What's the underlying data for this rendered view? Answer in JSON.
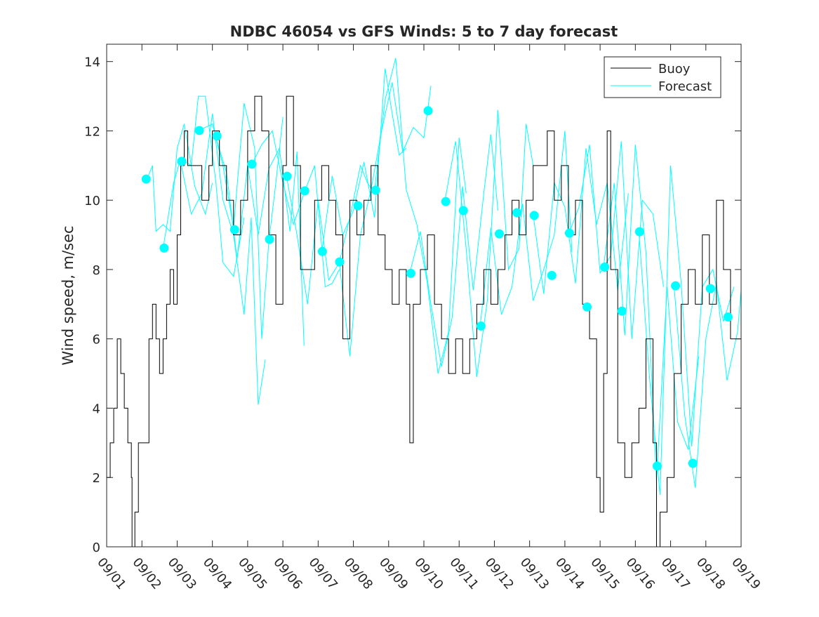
{
  "chart_data": {
    "type": "line",
    "title": "NDBC 46054 vs GFS Winds: 5 to 7 day forecast",
    "xlabel": "",
    "ylabel": "Wind speed, m/sec",
    "xlim": [
      0,
      18
    ],
    "ylim": [
      0,
      14.5
    ],
    "x_units": "days since 09/01",
    "x_tick_labels": [
      "09/01",
      "09/02",
      "09/03",
      "09/04",
      "09/05",
      "09/06",
      "09/07",
      "09/08",
      "09/09",
      "09/10",
      "09/11",
      "09/12",
      "09/13",
      "09/14",
      "09/15",
      "09/16",
      "09/17",
      "09/18",
      "09/19"
    ],
    "y_ticks": [
      0,
      2,
      4,
      6,
      8,
      10,
      12,
      14
    ],
    "legend": {
      "placement": "top-right",
      "entries": [
        "Buoy",
        "Forecast"
      ]
    },
    "colors": {
      "buoy": "#000000",
      "forecast": "#00ffff"
    },
    "series": [
      {
        "name": "Buoy",
        "style": "step",
        "x": [
          0,
          0.1,
          0.2,
          0.3,
          0.4,
          0.5,
          0.6,
          0.7,
          0.72,
          0.8,
          0.9,
          1.1,
          1.2,
          1.3,
          1.4,
          1.5,
          1.6,
          1.7,
          1.8,
          1.9,
          2.0,
          2.1,
          2.2,
          2.3,
          2.5,
          2.7,
          2.9,
          3.0,
          3.2,
          3.4,
          3.6,
          3.8,
          4.0,
          4.2,
          4.4,
          4.6,
          4.8,
          5.0,
          5.1,
          5.3,
          5.5,
          5.7,
          5.9,
          6.1,
          6.3,
          6.5,
          6.7,
          6.9,
          7.1,
          7.3,
          7.5,
          7.7,
          7.9,
          8.1,
          8.3,
          8.5,
          8.6,
          8.7,
          8.9,
          9.1,
          9.3,
          9.5,
          9.7,
          9.9,
          10.1,
          10.3,
          10.5,
          10.7,
          10.9,
          11.1,
          11.3,
          11.5,
          11.7,
          11.9,
          12.1,
          12.3,
          12.5,
          12.7,
          12.9,
          13.1,
          13.3,
          13.5,
          13.7,
          13.9,
          14.0,
          14.1,
          14.2,
          14.3,
          14.5,
          14.7,
          14.9,
          15.1,
          15.3,
          15.5,
          15.6,
          15.7,
          15.9,
          16.1,
          16.3,
          16.5,
          16.7,
          16.9,
          17.1,
          17.3,
          17.5,
          17.7,
          17.9,
          18.0
        ],
        "y": [
          2,
          3,
          4,
          6,
          5,
          4,
          3,
          2,
          0,
          1,
          3,
          3,
          6,
          7,
          6,
          5,
          6,
          7,
          8,
          7,
          9,
          11,
          12,
          11,
          11,
          10,
          11,
          12,
          11,
          10,
          9,
          10,
          12,
          13,
          12,
          9,
          7,
          11,
          13,
          11,
          8,
          8,
          10,
          11,
          10,
          9,
          6,
          10,
          9,
          10,
          11,
          9,
          8,
          7,
          8,
          7,
          3,
          7,
          8,
          9,
          7,
          6,
          5,
          6,
          5,
          6,
          7,
          8,
          7,
          8,
          9,
          10,
          9,
          10,
          11,
          11,
          12,
          10,
          11,
          9,
          10,
          7,
          6,
          2,
          1,
          5,
          12,
          8,
          3,
          2,
          3,
          4,
          6,
          3,
          0,
          1,
          2,
          5,
          7,
          8,
          7,
          9,
          7,
          10,
          8,
          6,
          6,
          6
        ]
      },
      {
        "name": "Forecast",
        "segments": [
          {
            "x": [
              1.1,
              1.3,
              1.4,
              1.6,
              1.8,
              2.0,
              2.2,
              2.5,
              2.8,
              3.0
            ],
            "y": [
              10.5,
              11,
              9.1,
              9.3,
              9.1,
              11.5,
              12.2,
              10.4,
              9.6,
              10.5
            ]
          },
          {
            "x": [
              1.6,
              1.9,
              2.1,
              2.4,
              2.6,
              2.8,
              3.1,
              3.3,
              3.6,
              3.9
            ],
            "y": [
              8.6,
              10.5,
              11.2,
              11.0,
              13.0,
              13.0,
              10.5,
              8.2,
              7.8,
              9.5
            ]
          },
          {
            "x": [
              2.1,
              2.4,
              2.7,
              3.0,
              3.3,
              3.6,
              3.9,
              4.1,
              4.3,
              4.5
            ],
            "y": [
              11.1,
              9.6,
              10.2,
              12.5,
              10.0,
              9.0,
              6.7,
              9.5,
              4.1,
              5.4
            ]
          },
          {
            "x": [
              2.6,
              3.0,
              3.3,
              3.6,
              3.9,
              4.2,
              4.4,
              4.6,
              4.8,
              5.0
            ],
            "y": [
              12.0,
              12.2,
              11.0,
              9.2,
              12.8,
              11.5,
              6.0,
              8.8,
              10.5,
              12.4
            ]
          },
          {
            "x": [
              3.1,
              3.4,
              3.7,
              4.0,
              4.3,
              4.6,
              4.9,
              5.2,
              5.4,
              5.6
            ],
            "y": [
              11.8,
              10.8,
              8.3,
              11.0,
              9.0,
              10.9,
              11.5,
              9.1,
              11.4,
              5.8
            ]
          },
          {
            "x": [
              4.1,
              4.4,
              4.7,
              5.0,
              5.3,
              5.6,
              5.9,
              6.2,
              6.4,
              6.6
            ],
            "y": [
              11.0,
              11.6,
              12.0,
              10.5,
              9.3,
              10.2,
              11.0,
              7.5,
              7.6,
              8.0
            ]
          },
          {
            "x": [
              5.1,
              5.4,
              5.7,
              6.0,
              6.3,
              6.6,
              6.9,
              7.2,
              7.4,
              7.6
            ],
            "y": [
              10.7,
              9.0,
              7.0,
              10.0,
              7.7,
              8.2,
              9.5,
              11.0,
              10.5,
              10.2
            ]
          },
          {
            "x": [
              6.1,
              6.4,
              6.7,
              7.0,
              7.3,
              7.6,
              7.9,
              8.1,
              8.3,
              8.5
            ],
            "y": [
              8.5,
              10.7,
              9.0,
              9.7,
              11.1,
              9.5,
              13.8,
              12.5,
              11.3,
              11.5
            ]
          },
          {
            "x": [
              6.6,
              6.9,
              7.2,
              7.5,
              7.8,
              8.1,
              8.4,
              8.7,
              9.0,
              9.2
            ],
            "y": [
              8.2,
              5.5,
              9.0,
              10.3,
              12.0,
              13.4,
              11.4,
              12.1,
              11.8,
              13.3
            ]
          },
          {
            "x": [
              7.6,
              7.9,
              8.2,
              8.5,
              8.8,
              9.1,
              9.4,
              9.7,
              10.0,
              10.2
            ],
            "y": [
              10.3,
              12.9,
              14.1,
              10.3,
              9.3,
              7.6,
              5.0,
              6.2,
              11.8,
              10.2
            ]
          },
          {
            "x": [
              8.6,
              8.9,
              9.2,
              9.5,
              9.8,
              10.1,
              10.4,
              10.7,
              10.9,
              11.1
            ],
            "y": [
              7.9,
              9.1,
              7.0,
              5.2,
              6.6,
              10.4,
              7.4,
              10.2,
              11.9,
              9.7
            ]
          },
          {
            "x": [
              9.6,
              9.9,
              10.2,
              10.5,
              10.8,
              11.1,
              11.4,
              11.7,
              11.9,
              12.1
            ],
            "y": [
              10.0,
              11.7,
              8.6,
              4.9,
              7.1,
              12.6,
              8.0,
              8.6,
              12.2,
              11.0
            ]
          },
          {
            "x": [
              10.6,
              10.9,
              11.2,
              11.5,
              11.8,
              12.1,
              12.4,
              12.7,
              13.0,
              13.2
            ],
            "y": [
              6.4,
              9.2,
              6.7,
              7.5,
              9.9,
              7.1,
              8.0,
              9.0,
              12.0,
              8.5
            ]
          },
          {
            "x": [
              12.1,
              12.4,
              12.7,
              13.0,
              13.3,
              13.6,
              13.9,
              14.2,
              14.5,
              14.8
            ],
            "y": [
              9.6,
              7.3,
              10.5,
              9.8,
              7.6,
              11.5,
              9.3,
              10.5,
              7.4,
              10.2
            ]
          },
          {
            "x": [
              13.1,
              13.4,
              13.7,
              14.0,
              14.3,
              14.6,
              14.9,
              15.2,
              15.5,
              15.8
            ],
            "y": [
              9.0,
              9.8,
              11.6,
              7.9,
              8.4,
              11.7,
              6.0,
              10.0,
              9.6,
              7.5
            ]
          },
          {
            "x": [
              14.1,
              14.4,
              14.7,
              15.0,
              15.3,
              15.6,
              15.9,
              16.2,
              16.5,
              16.8
            ],
            "y": [
              8.1,
              10.5,
              6.1,
              11.6,
              8.5,
              1.9,
              7.5,
              3.6,
              2.8,
              5.5
            ]
          },
          {
            "x": [
              15.1,
              15.4,
              15.7,
              16.0,
              16.3,
              16.6,
              16.9,
              17.2,
              17.5,
              17.8
            ],
            "y": [
              9.1,
              4.9,
              1.5,
              11.0,
              7.6,
              2.9,
              7.5,
              8.0,
              6.5,
              7.5
            ]
          },
          {
            "x": [
              16.1,
              16.4,
              16.7,
              17.0,
              17.3,
              17.6,
              17.9,
              18.0
            ],
            "y": [
              7.5,
              3.8,
              1.7,
              6.0,
              7.6,
              4.8,
              6.2,
              7.4
            ]
          }
        ]
      },
      {
        "name": "Forecast points",
        "x": [
          1.12,
          1.63,
          2.13,
          2.63,
          3.13,
          3.63,
          4.12,
          4.62,
          5.12,
          5.62,
          6.12,
          6.61,
          7.13,
          7.63,
          8.63,
          9.12,
          9.62,
          10.12,
          10.62,
          11.14,
          11.64,
          12.13,
          12.63,
          13.13,
          13.63,
          14.13,
          14.62,
          15.12,
          15.62,
          16.14,
          16.63,
          17.13,
          17.63
        ],
        "y": [
          10.61,
          8.62,
          11.12,
          12.01,
          11.85,
          9.15,
          11.04,
          8.87,
          10.69,
          10.27,
          8.52,
          8.22,
          9.84,
          10.29,
          7.89,
          12.58,
          9.96,
          9.7,
          6.37,
          9.03,
          9.64,
          9.56,
          7.83,
          9.05,
          6.92,
          8.07,
          6.8,
          9.09,
          2.33,
          7.53,
          2.41,
          7.45,
          6.63
        ]
      }
    ]
  }
}
